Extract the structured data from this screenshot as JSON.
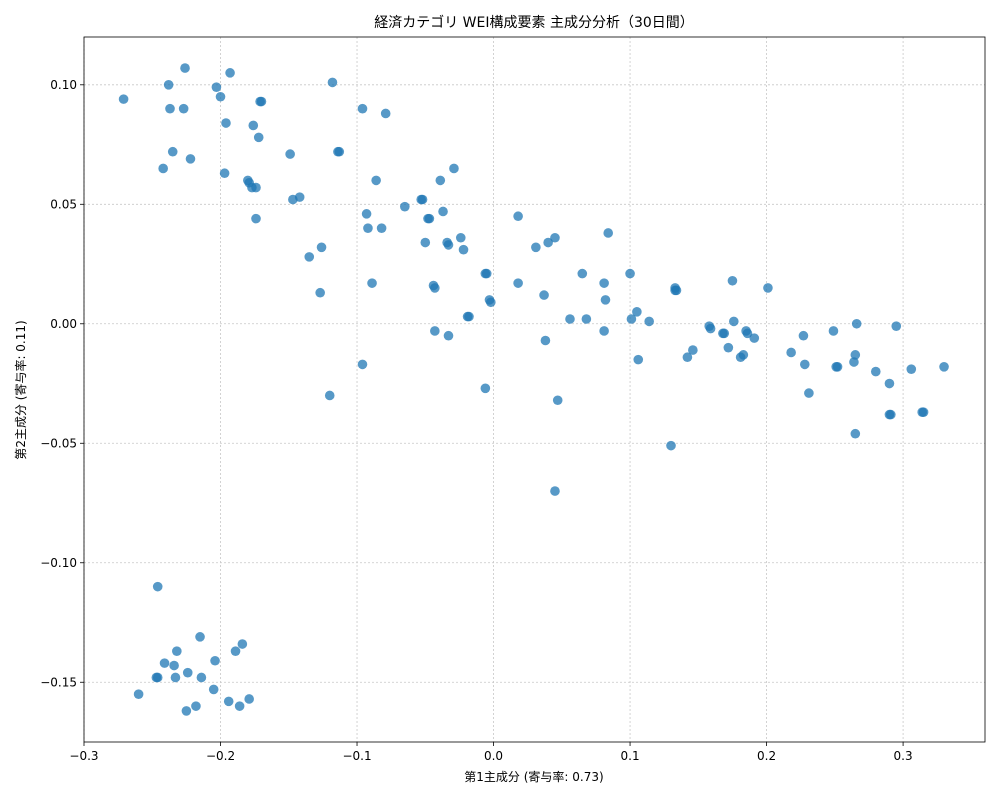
{
  "chart_data": {
    "type": "scatter",
    "title": "経済カテゴリ WEI構成要素 主成分分析（30日間）",
    "xlabel": "第1主成分 (寄与率: 0.73)",
    "ylabel": "第2主成分 (寄与率: 0.11)",
    "xlim": [
      -0.3,
      0.36
    ],
    "ylim": [
      -0.175,
      0.12
    ],
    "xticks": [
      -0.3,
      -0.2,
      -0.1,
      0.0,
      0.1,
      0.2,
      0.3
    ],
    "xtick_labels": [
      "−0.3",
      "−0.2",
      "−0.1",
      "0.0",
      "0.1",
      "0.2",
      "0.3"
    ],
    "yticks": [
      -0.15,
      -0.1,
      -0.05,
      0.0,
      0.05,
      0.1
    ],
    "ytick_labels": [
      "−0.15",
      "−0.10",
      "−0.05",
      "0.00",
      "0.05",
      "0.10"
    ],
    "grid": true,
    "color": "#1f77b4",
    "points": [
      [
        -0.271,
        0.094
      ],
      [
        -0.226,
        0.107
      ],
      [
        -0.238,
        0.1
      ],
      [
        -0.193,
        0.105
      ],
      [
        -0.203,
        0.099
      ],
      [
        -0.237,
        0.09
      ],
      [
        -0.227,
        0.09
      ],
      [
        -0.2,
        0.095
      ],
      [
        -0.17,
        0.093
      ],
      [
        -0.171,
        0.093
      ],
      [
        -0.118,
        0.101
      ],
      [
        -0.096,
        0.09
      ],
      [
        -0.079,
        0.088
      ],
      [
        -0.196,
        0.084
      ],
      [
        -0.176,
        0.083
      ],
      [
        -0.172,
        0.078
      ],
      [
        -0.235,
        0.072
      ],
      [
        -0.222,
        0.069
      ],
      [
        -0.149,
        0.071
      ],
      [
        -0.114,
        0.072
      ],
      [
        -0.113,
        0.072
      ],
      [
        -0.242,
        0.065
      ],
      [
        -0.197,
        0.063
      ],
      [
        -0.18,
        0.06
      ],
      [
        -0.179,
        0.059
      ],
      [
        -0.177,
        0.057
      ],
      [
        -0.174,
        0.057
      ],
      [
        -0.086,
        0.06
      ],
      [
        -0.039,
        0.06
      ],
      [
        -0.029,
        0.065
      ],
      [
        -0.147,
        0.052
      ],
      [
        -0.142,
        0.053
      ],
      [
        -0.053,
        0.052
      ],
      [
        -0.052,
        0.052
      ],
      [
        -0.174,
        0.044
      ],
      [
        -0.093,
        0.046
      ],
      [
        -0.065,
        0.049
      ],
      [
        -0.047,
        0.044
      ],
      [
        -0.048,
        0.044
      ],
      [
        -0.037,
        0.047
      ],
      [
        0.018,
        0.045
      ],
      [
        -0.092,
        0.04
      ],
      [
        -0.082,
        0.04
      ],
      [
        -0.024,
        0.036
      ],
      [
        -0.05,
        0.034
      ],
      [
        -0.034,
        0.034
      ],
      [
        -0.033,
        0.033
      ],
      [
        -0.022,
        0.031
      ],
      [
        -0.126,
        0.032
      ],
      [
        0.031,
        0.032
      ],
      [
        0.04,
        0.034
      ],
      [
        0.045,
        0.036
      ],
      [
        0.084,
        0.038
      ],
      [
        -0.135,
        0.028
      ],
      [
        -0.089,
        0.017
      ],
      [
        -0.043,
        0.015
      ],
      [
        -0.044,
        0.016
      ],
      [
        -0.005,
        0.021
      ],
      [
        -0.006,
        0.021
      ],
      [
        0.018,
        0.017
      ],
      [
        0.065,
        0.021
      ],
      [
        0.081,
        0.017
      ],
      [
        0.1,
        0.021
      ],
      [
        0.133,
        0.014
      ],
      [
        0.134,
        0.014
      ],
      [
        0.133,
        0.015
      ],
      [
        0.175,
        0.018
      ],
      [
        0.201,
        0.015
      ],
      [
        -0.127,
        0.013
      ],
      [
        0.037,
        0.012
      ],
      [
        0.082,
        0.01
      ],
      [
        -0.019,
        0.003
      ],
      [
        -0.018,
        0.003
      ],
      [
        -0.003,
        0.01
      ],
      [
        -0.002,
        0.009
      ],
      [
        0.056,
        0.002
      ],
      [
        0.068,
        0.002
      ],
      [
        0.101,
        0.002
      ],
      [
        0.105,
        0.005
      ],
      [
        0.114,
        0.001
      ],
      [
        0.176,
        0.001
      ],
      [
        0.159,
        -0.002
      ],
      [
        0.158,
        -0.001
      ],
      [
        0.168,
        -0.004
      ],
      [
        0.169,
        -0.004
      ],
      [
        0.185,
        -0.003
      ],
      [
        0.186,
        -0.004
      ],
      [
        0.191,
        -0.006
      ],
      [
        0.227,
        -0.005
      ],
      [
        0.249,
        -0.003
      ],
      [
        0.266,
        0.0
      ],
      [
        0.295,
        -0.001
      ],
      [
        -0.043,
        -0.003
      ],
      [
        -0.033,
        -0.005
      ],
      [
        0.038,
        -0.007
      ],
      [
        0.081,
        -0.003
      ],
      [
        0.172,
        -0.01
      ],
      [
        0.146,
        -0.011
      ],
      [
        0.142,
        -0.014
      ],
      [
        0.106,
        -0.015
      ],
      [
        0.181,
        -0.014
      ],
      [
        0.183,
        -0.013
      ],
      [
        0.218,
        -0.012
      ],
      [
        0.228,
        -0.017
      ],
      [
        0.251,
        -0.018
      ],
      [
        0.252,
        -0.018
      ],
      [
        0.264,
        -0.016
      ],
      [
        0.265,
        -0.013
      ],
      [
        0.28,
        -0.02
      ],
      [
        0.306,
        -0.019
      ],
      [
        0.33,
        -0.018
      ],
      [
        -0.096,
        -0.017
      ],
      [
        -0.006,
        -0.027
      ],
      [
        -0.12,
        -0.03
      ],
      [
        0.047,
        -0.032
      ],
      [
        0.231,
        -0.029
      ],
      [
        0.29,
        -0.025
      ],
      [
        0.291,
        -0.038
      ],
      [
        0.29,
        -0.038
      ],
      [
        0.315,
        -0.037
      ],
      [
        0.314,
        -0.037
      ],
      [
        0.265,
        -0.046
      ],
      [
        0.13,
        -0.051
      ],
      [
        0.045,
        -0.07
      ],
      [
        -0.246,
        -0.11
      ],
      [
        -0.215,
        -0.131
      ],
      [
        -0.184,
        -0.134
      ],
      [
        -0.189,
        -0.137
      ],
      [
        -0.232,
        -0.137
      ],
      [
        -0.204,
        -0.141
      ],
      [
        -0.241,
        -0.142
      ],
      [
        -0.234,
        -0.143
      ],
      [
        -0.247,
        -0.148
      ],
      [
        -0.246,
        -0.148
      ],
      [
        -0.233,
        -0.148
      ],
      [
        -0.224,
        -0.146
      ],
      [
        -0.214,
        -0.148
      ],
      [
        -0.205,
        -0.153
      ],
      [
        -0.26,
        -0.155
      ],
      [
        -0.194,
        -0.158
      ],
      [
        -0.179,
        -0.157
      ],
      [
        -0.218,
        -0.16
      ],
      [
        -0.186,
        -0.16
      ],
      [
        -0.225,
        -0.162
      ]
    ]
  }
}
